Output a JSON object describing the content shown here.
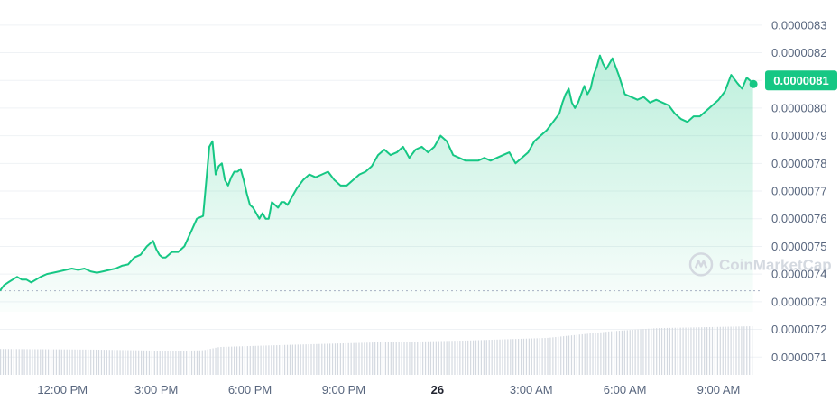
{
  "chart_data": {
    "type": "area",
    "y_tick_labels": [
      "0.0000083",
      "0.0000082",
      "0.0000081",
      "0.0000080",
      "0.0000079",
      "0.0000078",
      "0.0000077",
      "0.0000076",
      "0.0000075",
      "0.0000074",
      "0.0000073",
      "0.0000072",
      "0.0000071"
    ],
    "y_ticks": [
      8.3,
      8.2,
      8.1,
      8.0,
      7.9,
      7.8,
      7.7,
      7.6,
      7.5,
      7.4,
      7.3,
      7.2,
      7.1
    ],
    "ylim": [
      7.065,
      8.345
    ],
    "y_scale_note": "values in units of 1e-6",
    "x_tick_labels": [
      "12:00 PM",
      "3:00 PM",
      "6:00 PM",
      "9:00 PM",
      "26",
      "3:00 AM",
      "6:00 AM",
      "9:00 AM"
    ],
    "x_tick_hours": [
      12,
      15,
      18,
      21,
      24,
      27,
      30,
      33
    ],
    "xlim_hours": [
      10.0,
      34.4
    ],
    "current_price_label": "0.0000081",
    "current_price": 8.1,
    "watermark": "CoinMarketCap",
    "grid": true,
    "colors": {
      "line": "#16c784",
      "area_top": "#16c784",
      "area_bottom": "#ffffff",
      "volume": "#d4d9e0",
      "badge": "#16c784",
      "baseline_dotted": "#a6b0c3"
    },
    "baseline_value": 7.34,
    "price_series": {
      "x_hours": [
        10.0,
        10.13,
        10.26,
        10.4,
        10.55,
        10.7,
        10.85,
        11.0,
        11.15,
        11.3,
        11.5,
        11.7,
        11.9,
        12.1,
        12.3,
        12.5,
        12.7,
        12.9,
        13.1,
        13.3,
        13.5,
        13.7,
        13.9,
        14.1,
        14.3,
        14.5,
        14.7,
        14.9,
        15.0,
        15.1,
        15.2,
        15.3,
        15.4,
        15.5,
        15.7,
        15.9,
        16.1,
        16.3,
        16.5,
        16.7,
        16.8,
        16.9,
        17.0,
        17.1,
        17.2,
        17.3,
        17.4,
        17.5,
        17.6,
        17.7,
        17.8,
        17.9,
        18.0,
        18.1,
        18.2,
        18.3,
        18.4,
        18.5,
        18.6,
        18.7,
        18.8,
        18.9,
        19.0,
        19.1,
        19.2,
        19.3,
        19.5,
        19.7,
        19.9,
        20.1,
        20.3,
        20.5,
        20.7,
        20.9,
        21.1,
        21.3,
        21.5,
        21.7,
        21.9,
        22.1,
        22.3,
        22.5,
        22.7,
        22.9,
        23.1,
        23.3,
        23.5,
        23.7,
        23.9,
        24.1,
        24.3,
        24.5,
        24.7,
        24.9,
        25.1,
        25.3,
        25.5,
        25.7,
        25.9,
        26.1,
        26.3,
        26.5,
        26.7,
        26.9,
        27.1,
        27.3,
        27.5,
        27.7,
        27.9,
        28.0,
        28.1,
        28.2,
        28.3,
        28.4,
        28.5,
        28.6,
        28.7,
        28.8,
        28.9,
        29.0,
        29.1,
        29.2,
        29.3,
        29.4,
        29.5,
        29.6,
        29.8,
        30.0,
        30.2,
        30.4,
        30.6,
        30.8,
        31.0,
        31.2,
        31.4,
        31.6,
        31.8,
        32.0,
        32.2,
        32.4,
        32.6,
        32.8,
        33.0,
        33.2,
        33.4,
        33.6,
        33.75,
        33.9,
        34.0,
        34.1
      ],
      "y": [
        7.34,
        7.36,
        7.37,
        7.38,
        7.39,
        7.38,
        7.38,
        7.37,
        7.38,
        7.39,
        7.4,
        7.405,
        7.41,
        7.415,
        7.42,
        7.415,
        7.42,
        7.41,
        7.405,
        7.41,
        7.415,
        7.42,
        7.43,
        7.435,
        7.46,
        7.47,
        7.5,
        7.52,
        7.49,
        7.47,
        7.46,
        7.46,
        7.47,
        7.48,
        7.48,
        7.5,
        7.55,
        7.6,
        7.61,
        7.86,
        7.88,
        7.76,
        7.79,
        7.8,
        7.74,
        7.72,
        7.75,
        7.77,
        7.77,
        7.78,
        7.74,
        7.69,
        7.65,
        7.64,
        7.62,
        7.6,
        7.62,
        7.6,
        7.6,
        7.66,
        7.65,
        7.64,
        7.66,
        7.66,
        7.65,
        7.67,
        7.71,
        7.74,
        7.76,
        7.75,
        7.76,
        7.77,
        7.74,
        7.72,
        7.72,
        7.74,
        7.76,
        7.77,
        7.79,
        7.83,
        7.85,
        7.83,
        7.84,
        7.86,
        7.82,
        7.85,
        7.86,
        7.84,
        7.86,
        7.9,
        7.88,
        7.83,
        7.82,
        7.81,
        7.81,
        7.81,
        7.82,
        7.81,
        7.82,
        7.83,
        7.84,
        7.8,
        7.82,
        7.84,
        7.88,
        7.9,
        7.92,
        7.95,
        7.98,
        8.02,
        8.05,
        8.07,
        8.02,
        8.0,
        8.02,
        8.05,
        8.08,
        8.05,
        8.07,
        8.12,
        8.15,
        8.19,
        8.16,
        8.14,
        8.16,
        8.18,
        8.12,
        8.05,
        8.04,
        8.03,
        8.04,
        8.02,
        8.03,
        8.02,
        8.01,
        7.98,
        7.96,
        7.95,
        7.97,
        7.97,
        7.99,
        8.01,
        8.03,
        8.06,
        8.12,
        8.09,
        8.07,
        8.11,
        8.1,
        8.09
      ]
    },
    "volume_series": {
      "note": "relative volume levels (unlabeled)",
      "x_hours": [
        10.0,
        13.0,
        15.5,
        16.5,
        17.0,
        19.0,
        22.0,
        25.0,
        27.5,
        29.5,
        31.0,
        34.1
      ],
      "y": [
        0.4,
        0.39,
        0.37,
        0.38,
        0.43,
        0.46,
        0.5,
        0.53,
        0.57,
        0.67,
        0.72,
        0.75
      ]
    }
  }
}
